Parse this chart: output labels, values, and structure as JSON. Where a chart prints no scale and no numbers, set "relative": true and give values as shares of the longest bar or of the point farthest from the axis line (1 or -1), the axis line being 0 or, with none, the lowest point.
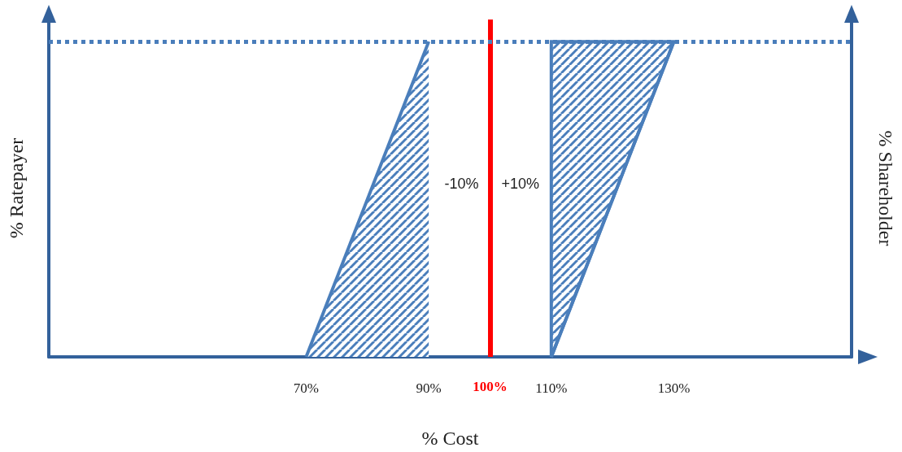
{
  "chart_data": {
    "type": "area",
    "relative": true,
    "xlabel": "% Cost",
    "ylabel": "% Ratepayer",
    "y2label": "% Shareholder",
    "xlim": [
      28,
      159
    ],
    "xticks": [
      {
        "value": 70,
        "label": "70%"
      },
      {
        "value": 90,
        "label": "90%"
      },
      {
        "value": 110,
        "label": "110%"
      },
      {
        "value": 130,
        "label": "130%"
      }
    ],
    "series": [
      {
        "color": "#4a7ebb",
        "x": [
          70,
          90
        ],
        "values": [
          0,
          1
        ]
      },
      {
        "type": "line",
        "color": "#4a7ebb",
        "x": [
          110,
          130
        ],
        "values": [
          0,
          1
        ],
        "lower": [
          0,
          1
        ],
        "upper": [
          1,
          1
        ]
      }
    ],
    "ref_lines": [
      {
        "axis": "x",
        "value": 100,
        "label": "100%",
        "color": "#ff0000",
        "line_style": "solid"
      },
      {
        "axis": "y",
        "value": 1,
        "color": "#4a7ebb",
        "line_style": "dotted"
      }
    ],
    "annotations": [
      "-10%",
      "+10%"
    ],
    "grid": false
  }
}
